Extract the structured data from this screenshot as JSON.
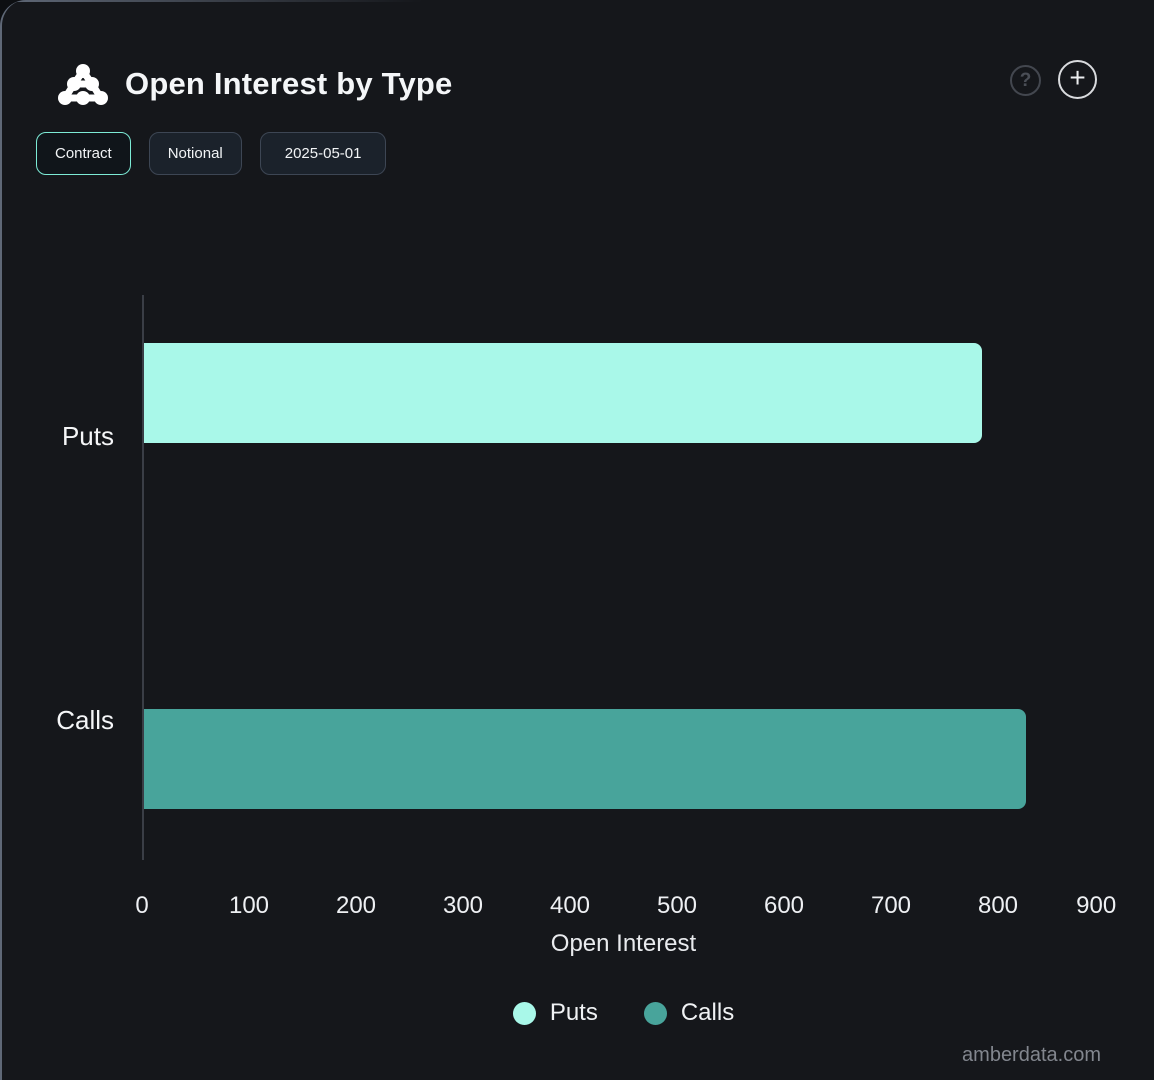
{
  "header": {
    "title": "Open Interest by Type",
    "help_icon_glyph": "?",
    "add_icon_glyph": "+"
  },
  "toolbar": {
    "contract_label": "Contract",
    "notional_label": "Notional",
    "date_label": "2025-05-01",
    "active": "Contract"
  },
  "colors": {
    "puts": "#a9f8e9",
    "calls": "#48a49b",
    "accent_border": "#7debd6",
    "background": "#15171b"
  },
  "chart_data": {
    "type": "bar",
    "orientation": "horizontal",
    "title": "Open Interest by Type",
    "categories": [
      "Puts",
      "Calls"
    ],
    "values": [
      783,
      824
    ],
    "bar_colors": [
      "#a9f8e9",
      "#48a49b"
    ],
    "xlabel": "Open Interest",
    "ylabel": "",
    "xlim": [
      0,
      900
    ],
    "x_ticks": [
      0,
      100,
      200,
      300,
      400,
      500,
      600,
      700,
      800,
      900
    ],
    "grid": false,
    "legend_position": "bottom",
    "legend": [
      "Puts",
      "Calls"
    ]
  },
  "legend": {
    "items": [
      {
        "label": "Puts",
        "color": "#a9f8e9"
      },
      {
        "label": "Calls",
        "color": "#48a49b"
      }
    ]
  },
  "footer": {
    "watermark": "amberdata.com"
  }
}
